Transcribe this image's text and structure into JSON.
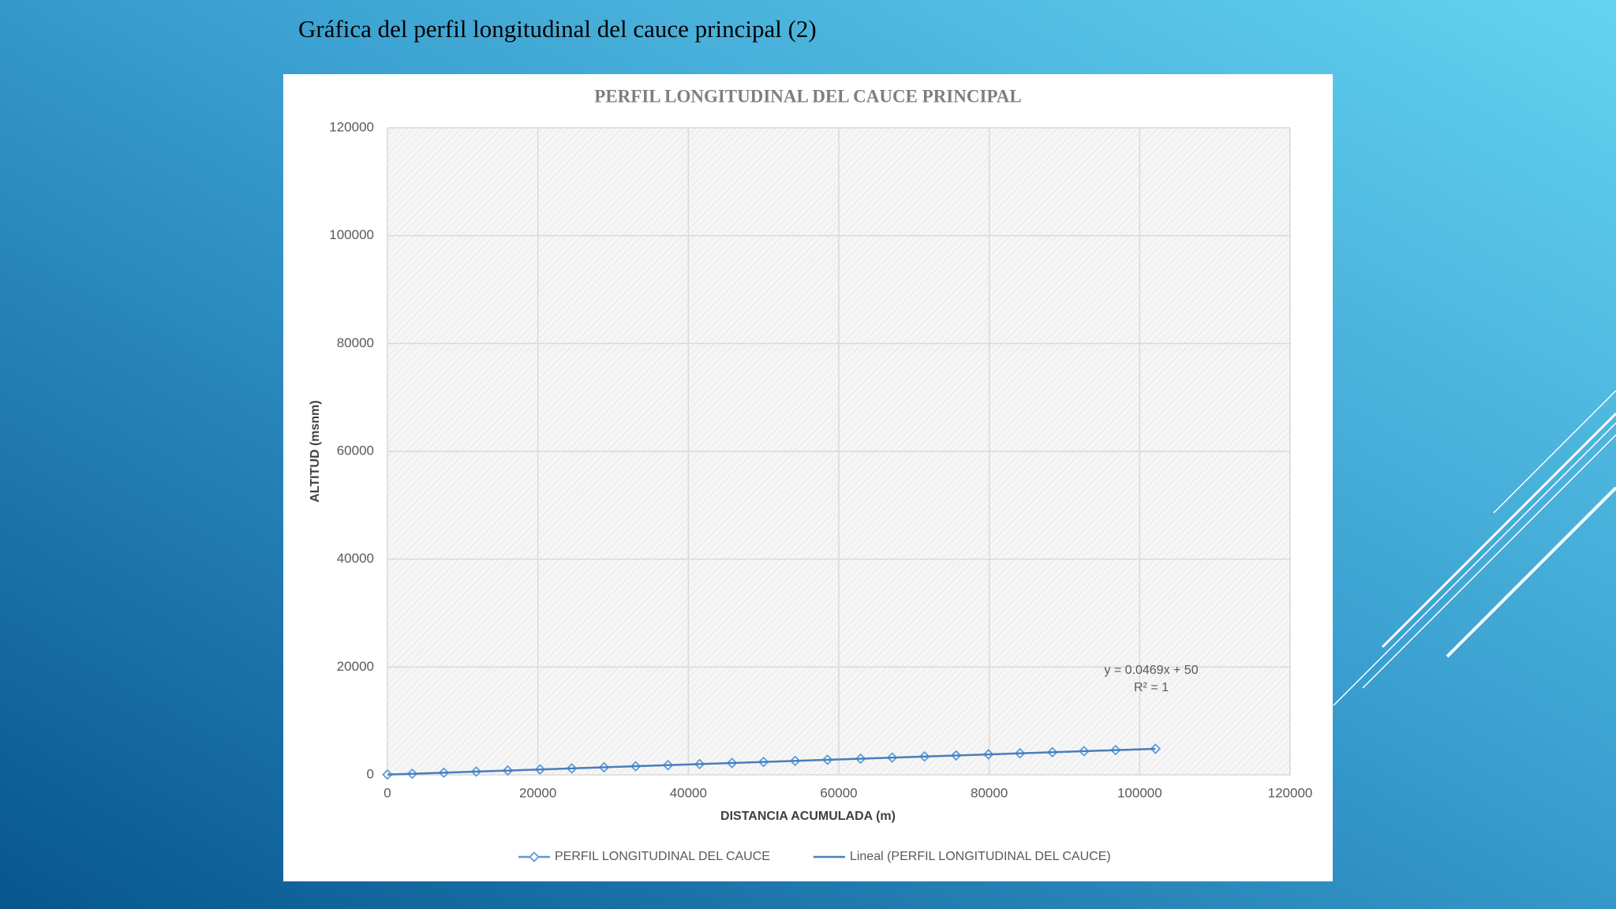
{
  "slide_title": "Gráfica del perfil longitudinal del cauce principal (2)",
  "chart_data": {
    "type": "line",
    "title": "PERFIL LONGITUDINAL DEL CAUCE PRINCIPAL",
    "x_label": "DISTANCIA ACUMULADA (m)",
    "y_label": "ALTITUD (msnm)",
    "xlim": [
      0,
      120000
    ],
    "xticks": [
      0,
      20000,
      40000,
      60000,
      80000,
      100000,
      120000
    ],
    "ylim": [
      0,
      120000
    ],
    "yticks": [
      0,
      20000,
      40000,
      60000,
      80000,
      100000,
      120000
    ],
    "grid": true,
    "legend": "bottom",
    "annotations": [
      "y = 0.0469x + 50",
      "R² = 1"
    ],
    "series": [
      {
        "name": "PERFIL LONGITUDINAL DEL CAUCE",
        "color": "#5b9bd5",
        "marker": "diamond",
        "x": [
          0,
          3300,
          7500,
          11800,
          16000,
          20300,
          24500,
          28800,
          33000,
          37300,
          41500,
          45800,
          50000,
          54200,
          58500,
          62900,
          67100,
          71400,
          75600,
          79900,
          84100,
          88400,
          92600,
          96800,
          102100
        ],
        "values": [
          50,
          205,
          402,
          603,
          800,
          1002,
          1199,
          1401,
          1598,
          1799,
          1996,
          2198,
          2395,
          2592,
          2794,
          3000,
          3197,
          3399,
          3596,
          3797,
          3994,
          4196,
          4393,
          4590,
          4838
        ]
      },
      {
        "name": "Lineal (PERFIL LONGITUDINAL DEL CAUCE)",
        "color": "#4a7ebb",
        "marker": "none",
        "x": [
          0,
          102100
        ],
        "values": [
          50,
          4838
        ]
      }
    ]
  }
}
